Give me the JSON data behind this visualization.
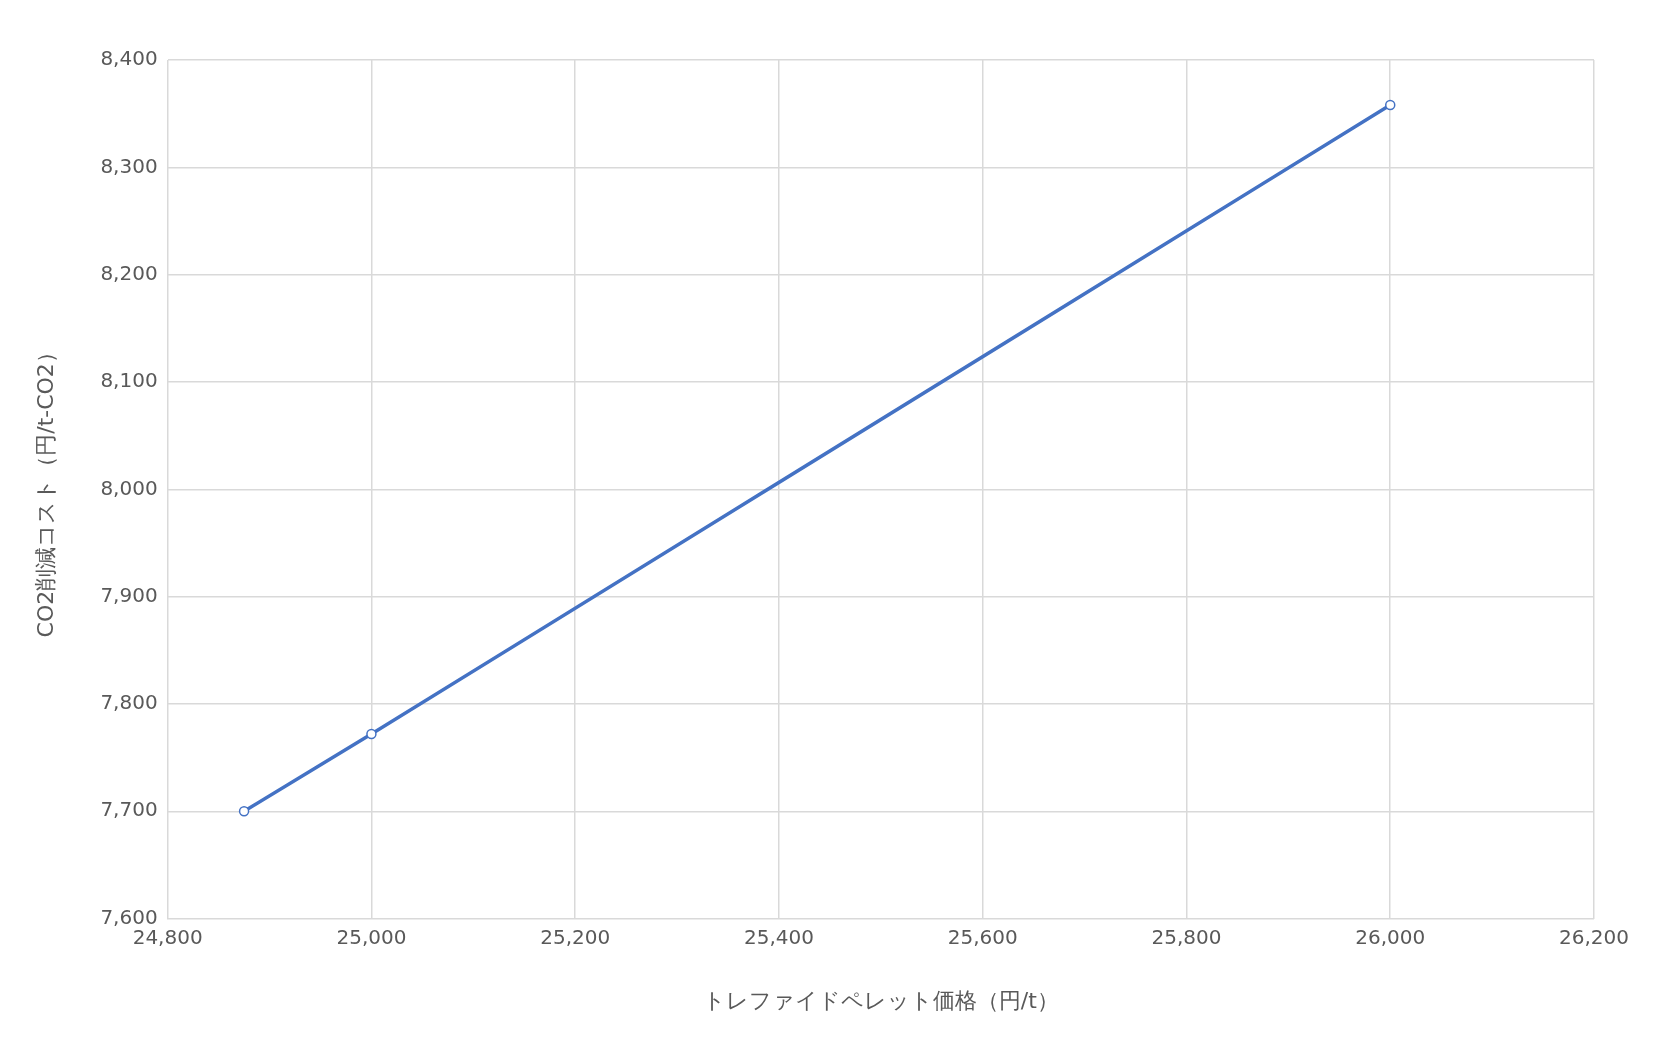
{
  "chart_data": {
    "type": "line",
    "xlabel": "トレファイドペレット価格（円/t）",
    "ylabel": "CO2削減コスト（円/t-CO2）",
    "x": [
      24875,
      25000,
      26000
    ],
    "series": [
      {
        "color": "#4472c4",
        "values": [
          7700,
          7772,
          8358
        ]
      }
    ],
    "xlim": [
      24800,
      26200
    ],
    "ylim": [
      7600,
      8400
    ],
    "xticks": [
      {
        "value": 24800,
        "label": "24,800"
      },
      {
        "value": 25000,
        "label": "25,000"
      },
      {
        "value": 25200,
        "label": "25,200"
      },
      {
        "value": 25400,
        "label": "25,400"
      },
      {
        "value": 25600,
        "label": "25,600"
      },
      {
        "value": 25800,
        "label": "25,800"
      },
      {
        "value": 26000,
        "label": "26,000"
      },
      {
        "value": 26200,
        "label": "26,200"
      }
    ],
    "yticks": [
      {
        "value": 7600,
        "label": "7,600"
      },
      {
        "value": 7700,
        "label": "7,700"
      },
      {
        "value": 7800,
        "label": "7,800"
      },
      {
        "value": 7900,
        "label": "7,900"
      },
      {
        "value": 8000,
        "label": "8,000"
      },
      {
        "value": 8100,
        "label": "8,100"
      },
      {
        "value": 8200,
        "label": "8,200"
      },
      {
        "value": 8300,
        "label": "8,300"
      },
      {
        "value": 8400,
        "label": "8,400"
      }
    ],
    "grid": true,
    "marker": "circle",
    "line_style": "solid"
  }
}
